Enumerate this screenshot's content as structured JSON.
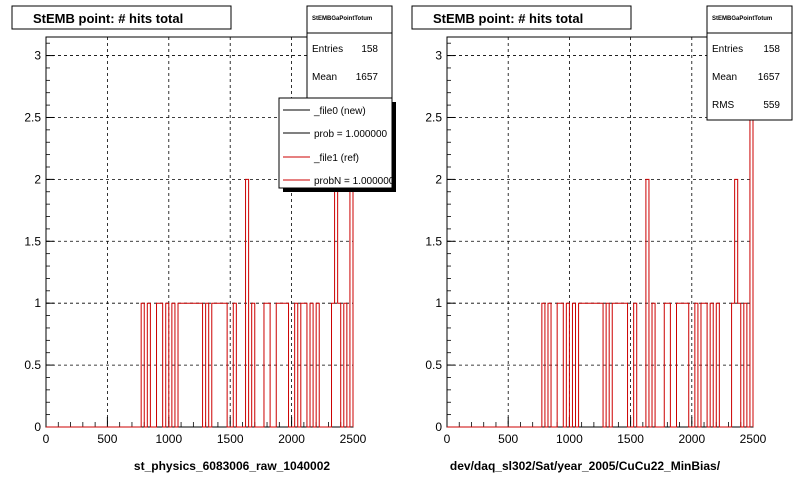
{
  "footer_text": "",
  "colors": {
    "new": "#000000",
    "ref": "#cc0000",
    "grid": "#000000"
  },
  "chart_data": [
    {
      "type": "histogram",
      "title": "StEMB point: # hits total",
      "xlabel": "st_physics_6083006_raw_1040002",
      "xlim": [
        0,
        2500
      ],
      "ylim": [
        0,
        3.15
      ],
      "xticks": [
        "0",
        "500",
        "1000",
        "1500",
        "2000",
        "2500"
      ],
      "yticks": [
        "0",
        "0.5",
        "1",
        "1.5",
        "2",
        "2.5",
        "3"
      ],
      "grid": true,
      "stats": {
        "title": "StEMBGaPointTotum",
        "entries_label": "Entries",
        "entries": "158",
        "mean_label": "Mean",
        "mean": "1657",
        "rms_label": "RMS",
        "rms": "559"
      },
      "legend": [
        {
          "label": "_file0 (new)",
          "series": "new"
        },
        {
          "label": "prob = 1.000000",
          "series": "new"
        },
        {
          "label": "_file1 (ref)",
          "series": "ref"
        },
        {
          "label": "probN = 1.000000",
          "series": "ref"
        }
      ],
      "bin_width": 25,
      "series": [
        {
          "name": "_file1 (ref)",
          "color": "#cc0000",
          "bins": [
            [
              775,
              1
            ],
            [
              825,
              1
            ],
            [
              900,
              1
            ],
            [
              925,
              1
            ],
            [
              975,
              1
            ],
            [
              1025,
              1
            ],
            [
              1075,
              1
            ],
            [
              1100,
              1
            ],
            [
              1125,
              1
            ],
            [
              1150,
              1
            ],
            [
              1175,
              1
            ],
            [
              1200,
              1
            ],
            [
              1225,
              1
            ],
            [
              1250,
              1
            ],
            [
              1300,
              1
            ],
            [
              1350,
              1
            ],
            [
              1375,
              1
            ],
            [
              1400,
              1
            ],
            [
              1425,
              1
            ],
            [
              1450,
              1
            ],
            [
              1525,
              1
            ],
            [
              1625,
              2
            ],
            [
              1675,
              1
            ],
            [
              1775,
              1
            ],
            [
              1800,
              1
            ],
            [
              1875,
              1
            ],
            [
              1900,
              1
            ],
            [
              1925,
              1
            ],
            [
              1950,
              1
            ],
            [
              2025,
              1
            ],
            [
              2075,
              1
            ],
            [
              2100,
              1
            ],
            [
              2150,
              1
            ],
            [
              2200,
              1
            ],
            [
              2325,
              1
            ],
            [
              2350,
              2
            ],
            [
              2375,
              1
            ],
            [
              2425,
              1
            ],
            [
              2475,
              3
            ]
          ]
        }
      ]
    },
    {
      "type": "histogram",
      "title": "StEMB point: # hits total",
      "xlabel": "dev/daq_sl302/Sat/year_2005/CuCu22_MinBias/",
      "xlim": [
        0,
        2500
      ],
      "ylim": [
        0,
        3.15
      ],
      "xticks": [
        "0",
        "500",
        "1000",
        "1500",
        "2000",
        "2500"
      ],
      "yticks": [
        "0",
        "0.5",
        "1",
        "1.5",
        "2",
        "2.5",
        "3"
      ],
      "grid": true,
      "stats": {
        "title": "StEMBGaPointTotum",
        "entries_label": "Entries",
        "entries": "158",
        "mean_label": "Mean",
        "mean": "1657",
        "rms_label": "RMS",
        "rms": "559"
      },
      "legend": [],
      "bin_width": 25,
      "series": [
        {
          "name": "_file1 (ref)",
          "color": "#cc0000",
          "bins": [
            [
              775,
              1
            ],
            [
              825,
              1
            ],
            [
              900,
              1
            ],
            [
              925,
              1
            ],
            [
              975,
              1
            ],
            [
              1025,
              1
            ],
            [
              1075,
              1
            ],
            [
              1100,
              1
            ],
            [
              1125,
              1
            ],
            [
              1150,
              1
            ],
            [
              1175,
              1
            ],
            [
              1200,
              1
            ],
            [
              1225,
              1
            ],
            [
              1250,
              1
            ],
            [
              1300,
              1
            ],
            [
              1350,
              1
            ],
            [
              1375,
              1
            ],
            [
              1400,
              1
            ],
            [
              1425,
              1
            ],
            [
              1450,
              1
            ],
            [
              1525,
              1
            ],
            [
              1625,
              2
            ],
            [
              1675,
              1
            ],
            [
              1775,
              1
            ],
            [
              1800,
              1
            ],
            [
              1875,
              1
            ],
            [
              1900,
              1
            ],
            [
              1925,
              1
            ],
            [
              1950,
              1
            ],
            [
              2025,
              1
            ],
            [
              2075,
              1
            ],
            [
              2100,
              1
            ],
            [
              2150,
              1
            ],
            [
              2200,
              1
            ],
            [
              2325,
              1
            ],
            [
              2350,
              2
            ],
            [
              2375,
              1
            ],
            [
              2425,
              1
            ],
            [
              2475,
              3
            ]
          ]
        }
      ]
    }
  ]
}
